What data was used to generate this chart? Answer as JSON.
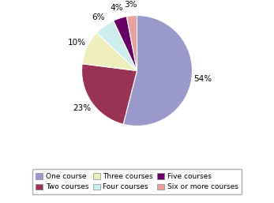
{
  "labels": [
    "One course",
    "Two courses",
    "Three courses",
    "Four courses",
    "Five courses",
    "Six or more courses"
  ],
  "values": [
    54,
    23,
    10,
    6,
    4,
    3
  ],
  "colors": [
    "#9999CC",
    "#993355",
    "#EEEEBB",
    "#CCEEEE",
    "#660066",
    "#E8A0A0"
  ],
  "pct_labels": [
    "54%",
    "23%",
    "10%",
    "6%",
    "4%",
    "3%"
  ],
  "startangle": 90,
  "legend_order": [
    0,
    1,
    2,
    3,
    4,
    5
  ],
  "legend_labels": [
    "One course",
    "Two courses",
    "Three courses",
    "Four courses",
    "Five courses",
    "Six or more courses"
  ],
  "figsize": [
    3.47,
    2.57
  ],
  "dpi": 100
}
